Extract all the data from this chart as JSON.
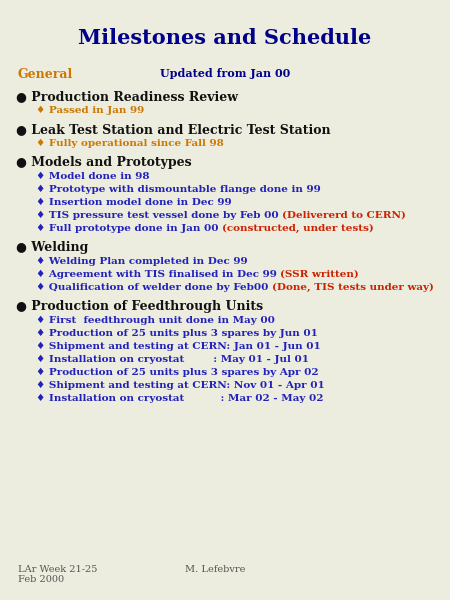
{
  "title": "Milestones and Schedule",
  "title_color": "#00008B",
  "title_fontsize": 15,
  "background_color": "#ededdf",
  "footer_left": "LAr Week 21-25\nFeb 2000",
  "footer_right": "M. Lefebvre",
  "footer_color": "#555555",
  "footer_fontsize": 7,
  "sections": [
    {
      "type": "general",
      "header": "General",
      "header_color": "#CC7700",
      "updated": "Updated from Jan 00",
      "updated_color": "#00008B"
    },
    {
      "type": "main",
      "header": "Production Readiness Review",
      "header_color": "#111111",
      "subitems": [
        {
          "parts": [
            {
              "text": "♦ Passed in Jan 99",
              "color": "#CC7700"
            }
          ]
        }
      ]
    },
    {
      "type": "main",
      "header": "Leak Test Station and Electric Test Station",
      "header_color": "#111111",
      "subitems": [
        {
          "parts": [
            {
              "text": "♦ Fully operational since Fall 98",
              "color": "#CC7700"
            }
          ]
        }
      ]
    },
    {
      "type": "main",
      "header": "Models and Prototypes",
      "header_color": "#111111",
      "subitems": [
        {
          "parts": [
            {
              "text": "♦ Model done in 98",
              "color": "#2222BB"
            }
          ]
        },
        {
          "parts": [
            {
              "text": "♦ Prototype with dismountable flange done in 99",
              "color": "#2222BB"
            }
          ]
        },
        {
          "parts": [
            {
              "text": "♦ Insertion model done in Dec 99",
              "color": "#2222BB"
            }
          ]
        },
        {
          "parts": [
            {
              "text": "♦ TIS pressure test vessel done by Feb 00 ",
              "color": "#2222BB"
            },
            {
              "text": "(Delivererd to CERN)",
              "color": "#CC2200"
            }
          ]
        },
        {
          "parts": [
            {
              "text": "♦ Full prototype done in Jan 00 ",
              "color": "#2222BB"
            },
            {
              "text": "(constructed, under tests)",
              "color": "#CC2200"
            }
          ]
        }
      ]
    },
    {
      "type": "main",
      "header": "Welding",
      "header_color": "#111111",
      "subitems": [
        {
          "parts": [
            {
              "text": "♦ Welding Plan completed in Dec 99",
              "color": "#2222BB"
            }
          ]
        },
        {
          "parts": [
            {
              "text": "♦ Agreement with TIS finalised in Dec 99 ",
              "color": "#2222BB"
            },
            {
              "text": "(SSR written)",
              "color": "#CC2200"
            }
          ]
        },
        {
          "parts": [
            {
              "text": "♦ Qualification of welder done by Feb00 ",
              "color": "#2222BB"
            },
            {
              "text": "(Done, TIS tests under way)",
              "color": "#CC2200"
            }
          ]
        }
      ]
    },
    {
      "type": "main",
      "header": "Production of Feedthrough Units",
      "header_color": "#111111",
      "subitems": [
        {
          "parts": [
            {
              "text": "♦ First  feedthrough unit done in May 00",
              "color": "#2222BB"
            }
          ]
        },
        {
          "parts": [
            {
              "text": "♦ Production of 25 units plus 3 spares by Jun 01",
              "color": "#2222BB"
            }
          ]
        },
        {
          "parts": [
            {
              "text": "♦ Shipment and testing at CERN: Jan 01 - Jun 01",
              "color": "#2222BB"
            }
          ]
        },
        {
          "parts": [
            {
              "text": "♦ Installation on cryostat        : May 01 - Jul 01",
              "color": "#2222BB"
            }
          ]
        },
        {
          "parts": [
            {
              "text": "♦ Production of 25 units plus 3 spares by Apr 02",
              "color": "#2222BB"
            }
          ]
        },
        {
          "parts": [
            {
              "text": "♦ Shipment and testing at CERN: Nov 01 - Apr 01",
              "color": "#2222BB"
            }
          ]
        },
        {
          "parts": [
            {
              "text": "♦ Installation on cryostat          : Mar 02 - May 02",
              "color": "#2222BB"
            }
          ]
        }
      ]
    }
  ]
}
